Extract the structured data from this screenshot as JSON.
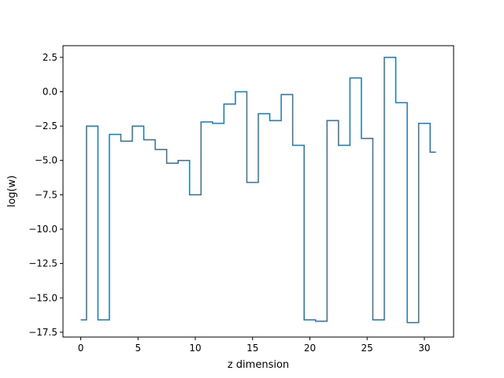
{
  "chart_data": {
    "type": "line",
    "drawstyle": "steps-mid",
    "xlabel": "z dimension",
    "ylabel": "log(w)",
    "xlim": [
      -1.55,
      32.55
    ],
    "ylim": [
      -17.85,
      3.35
    ],
    "xticks": [
      0,
      5,
      10,
      15,
      20,
      25,
      30
    ],
    "xtick_labels": [
      "0",
      "5",
      "10",
      "15",
      "20",
      "25",
      "30"
    ],
    "yticks": [
      2.5,
      0.0,
      -2.5,
      -5.0,
      -7.5,
      -10.0,
      -12.5,
      -15.0,
      -17.5
    ],
    "ytick_labels": [
      "2.5",
      "0.0",
      "−2.5",
      "−5.0",
      "−7.5",
      "−10.0",
      "−12.5",
      "−15.0",
      "−17.5"
    ],
    "grid": false,
    "series": [
      {
        "color": "#1f77b4",
        "x": [
          0,
          1,
          2,
          3,
          4,
          5,
          6,
          7,
          8,
          9,
          10,
          11,
          12,
          13,
          14,
          15,
          16,
          17,
          18,
          19,
          20,
          21,
          22,
          23,
          24,
          25,
          26,
          27,
          28,
          29,
          30,
          31
        ],
        "values": [
          -16.6,
          -2.5,
          -16.6,
          -3.1,
          -3.6,
          -2.5,
          -3.5,
          -4.2,
          -5.2,
          -5.0,
          -7.5,
          -2.2,
          -2.3,
          -0.9,
          0.0,
          -6.6,
          -1.6,
          -2.1,
          -0.2,
          -3.9,
          -16.6,
          -16.7,
          -2.1,
          -3.9,
          1.0,
          -3.4,
          -16.6,
          2.5,
          -0.8,
          -16.8,
          -2.3,
          -4.4
        ]
      }
    ]
  }
}
